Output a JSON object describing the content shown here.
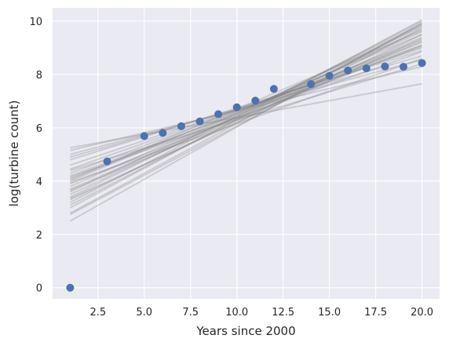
{
  "chart_data": {
    "type": "scatter",
    "title": "",
    "xlabel": "Years since 2000",
    "ylabel": "log(turbine count)",
    "xlim": [
      0.05,
      20.95
    ],
    "ylim": [
      -0.42,
      10.5
    ],
    "grid": true,
    "background": "#eaeaf2",
    "grid_color": "#ffffff",
    "point_color": "#4c72b0",
    "line_color": "#808080",
    "xticks": [
      2.5,
      5.0,
      7.5,
      10.0,
      12.5,
      15.0,
      17.5,
      20.0
    ],
    "xtick_labels": [
      "2.5",
      "5.0",
      "7.5",
      "10.0",
      "12.5",
      "15.0",
      "17.5",
      "20.0"
    ],
    "yticks": [
      0,
      2,
      4,
      6,
      8,
      10
    ],
    "ytick_labels": [
      "0",
      "2",
      "4",
      "6",
      "8",
      "10"
    ],
    "points": [
      {
        "x": 1,
        "y": 0.0
      },
      {
        "x": 3,
        "y": 4.74
      },
      {
        "x": 5,
        "y": 5.69
      },
      {
        "x": 6,
        "y": 5.81
      },
      {
        "x": 7,
        "y": 6.06
      },
      {
        "x": 8,
        "y": 6.24
      },
      {
        "x": 9,
        "y": 6.51
      },
      {
        "x": 10,
        "y": 6.77
      },
      {
        "x": 11,
        "y": 7.02
      },
      {
        "x": 12,
        "y": 7.46
      },
      {
        "x": 14,
        "y": 7.64
      },
      {
        "x": 15,
        "y": 7.95
      },
      {
        "x": 16,
        "y": 8.15
      },
      {
        "x": 17,
        "y": 8.23
      },
      {
        "x": 18,
        "y": 8.3
      },
      {
        "x": 19,
        "y": 8.29
      },
      {
        "x": 20,
        "y": 8.43
      }
    ],
    "fit_lines": [
      {
        "x1": 1,
        "y1": 5.25,
        "x2": 20,
        "y2": 7.65
      },
      {
        "x1": 1,
        "y1": 5.15,
        "x2": 20,
        "y2": 8.3
      },
      {
        "x1": 1,
        "y1": 5.0,
        "x2": 20,
        "y2": 8.55
      },
      {
        "x1": 1,
        "y1": 4.9,
        "x2": 20,
        "y2": 8.7
      },
      {
        "x1": 1,
        "y1": 4.8,
        "x2": 20,
        "y2": 8.9
      },
      {
        "x1": 1,
        "y1": 4.6,
        "x2": 20,
        "y2": 9.0
      },
      {
        "x1": 1,
        "y1": 4.45,
        "x2": 20,
        "y2": 9.1
      },
      {
        "x1": 1,
        "y1": 4.3,
        "x2": 20,
        "y2": 9.2
      },
      {
        "x1": 1,
        "y1": 4.2,
        "x2": 20,
        "y2": 9.05
      },
      {
        "x1": 1,
        "y1": 4.1,
        "x2": 20,
        "y2": 9.3
      },
      {
        "x1": 1,
        "y1": 4.0,
        "x2": 20,
        "y2": 9.5
      },
      {
        "x1": 1,
        "y1": 3.9,
        "x2": 20,
        "y2": 9.1
      },
      {
        "x1": 1,
        "y1": 3.8,
        "x2": 20,
        "y2": 9.6
      },
      {
        "x1": 1,
        "y1": 3.7,
        "x2": 20,
        "y2": 9.4
      },
      {
        "x1": 1,
        "y1": 3.6,
        "x2": 20,
        "y2": 9.8
      },
      {
        "x1": 1,
        "y1": 3.5,
        "x2": 20,
        "y2": 9.7
      },
      {
        "x1": 1,
        "y1": 3.4,
        "x2": 20,
        "y2": 9.9
      },
      {
        "x1": 1,
        "y1": 3.3,
        "x2": 20,
        "y2": 9.5
      },
      {
        "x1": 1,
        "y1": 3.2,
        "x2": 20,
        "y2": 10.0
      },
      {
        "x1": 1,
        "y1": 3.1,
        "x2": 20,
        "y2": 9.85
      },
      {
        "x1": 1,
        "y1": 3.0,
        "x2": 20,
        "y2": 10.05
      },
      {
        "x1": 1,
        "y1": 2.8,
        "x2": 20,
        "y2": 9.9
      },
      {
        "x1": 1,
        "y1": 2.75,
        "x2": 20,
        "y2": 9.75
      },
      {
        "x1": 1,
        "y1": 2.5,
        "x2": 20,
        "y2": 9.95
      },
      {
        "x1": 1,
        "y1": 4.15,
        "x2": 20,
        "y2": 8.85
      },
      {
        "x1": 1,
        "y1": 3.95,
        "x2": 20,
        "y2": 8.6
      },
      {
        "x1": 1,
        "y1": 4.4,
        "x2": 20,
        "y2": 8.4
      },
      {
        "x1": 1,
        "y1": 3.65,
        "x2": 20,
        "y2": 9.25
      },
      {
        "x1": 1,
        "y1": 3.35,
        "x2": 20,
        "y2": 9.35
      },
      {
        "x1": 1,
        "y1": 4.05,
        "x2": 20,
        "y2": 9.65
      }
    ]
  }
}
